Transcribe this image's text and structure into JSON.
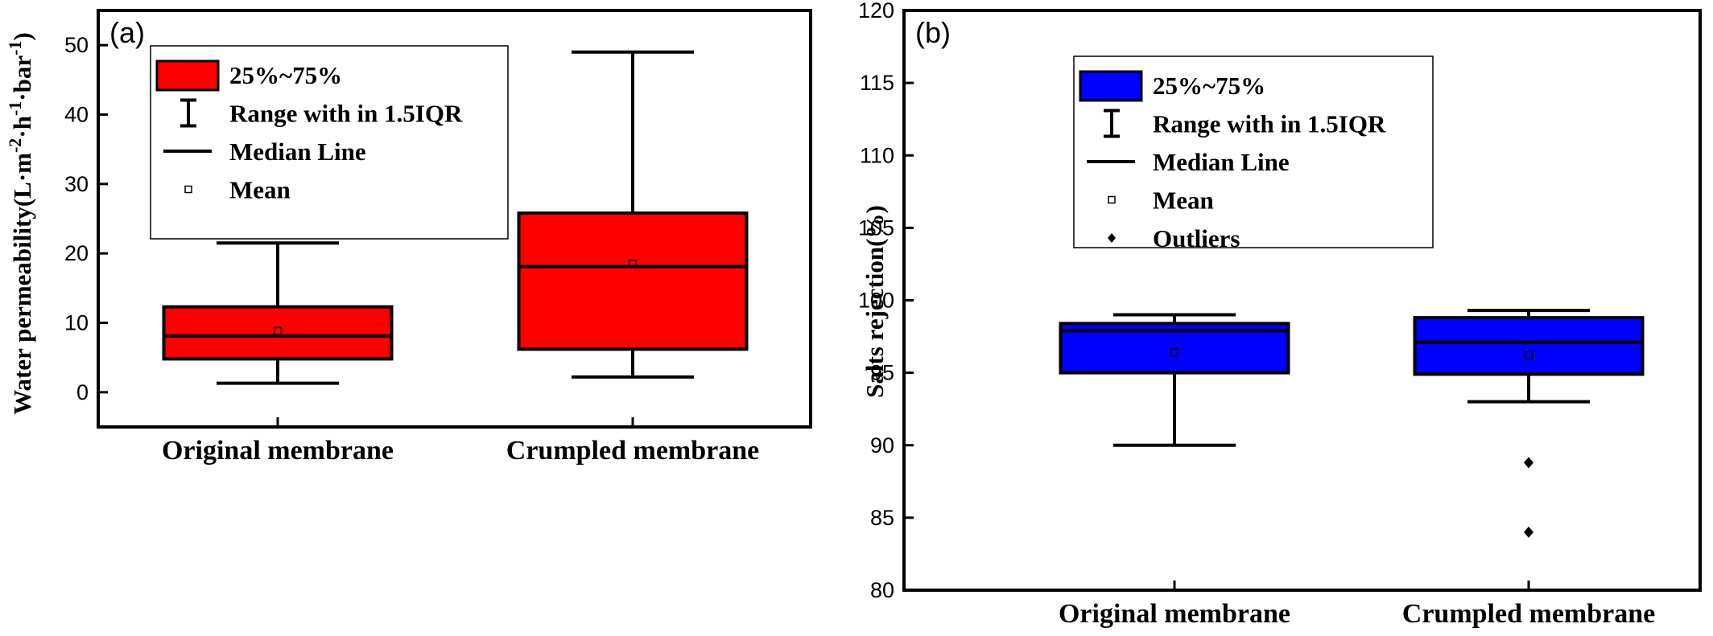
{
  "chart_data": [
    {
      "type": "box",
      "panel_label": "(a)",
      "ylabel": "Water permeability(L·m",
      "ylabel_parts": [
        "Water permeability(L·m",
        "-2",
        "·h",
        "-1",
        "·bar",
        "-1",
        ")"
      ],
      "ylim": [
        -5,
        55
      ],
      "yticks": [
        "0",
        "10",
        "20",
        "30",
        "40",
        "50"
      ],
      "categories": [
        "Original membrane",
        "Crumpled membrane"
      ],
      "box_color": "#ff0000",
      "boxes": [
        {
          "name": "Original membrane",
          "whisker_low": 1.3,
          "q1": 4.8,
          "median": 8.1,
          "q3": 12.3,
          "whisker_high": 21.5,
          "mean": 8.8,
          "outliers": []
        },
        {
          "name": "Crumpled membrane",
          "whisker_low": 2.2,
          "q1": 6.2,
          "median": 18.1,
          "q3": 25.8,
          "whisker_high": 49.0,
          "mean": 18.5,
          "outliers": []
        }
      ],
      "legend": {
        "placement": "top-left",
        "items": [
          "25%~75%",
          "Range with in 1.5IQR",
          "Median Line",
          "Mean"
        ]
      }
    },
    {
      "type": "box",
      "panel_label": "(b)",
      "ylabel": "Salts rejection(%)",
      "ylim": [
        80,
        120
      ],
      "yticks": [
        "80",
        "85",
        "90",
        "95",
        "100",
        "105",
        "110",
        "115",
        "120"
      ],
      "categories": [
        "Original membrane",
        "Crumpled membrane"
      ],
      "box_color": "#0000ff",
      "boxes": [
        {
          "name": "Original membrane",
          "whisker_low": 90.0,
          "q1": 95.0,
          "median": 97.9,
          "q3": 98.4,
          "whisker_high": 99.0,
          "mean": 96.4,
          "outliers": []
        },
        {
          "name": "Crumpled membrane",
          "whisker_low": 93.0,
          "q1": 94.9,
          "median": 97.1,
          "q3": 98.8,
          "whisker_high": 99.3,
          "mean": 96.2,
          "outliers": [
            88.8,
            84.0
          ]
        }
      ],
      "legend": {
        "placement": "top-left",
        "items": [
          "25%~75%",
          "Range with in 1.5IQR",
          "Median Line",
          "Mean",
          "Outliers"
        ]
      }
    }
  ]
}
